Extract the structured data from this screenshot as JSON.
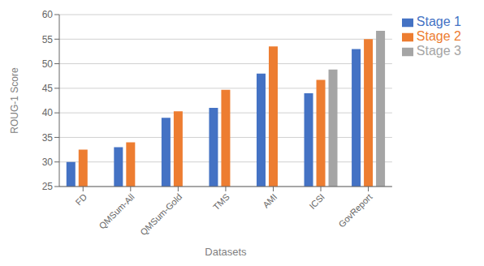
{
  "chart_data": {
    "type": "bar",
    "categories": [
      "FD",
      "QMSum-All",
      "QMSum-Gold",
      "TMS",
      "AMI",
      "ICSI",
      "GovReport"
    ],
    "series": [
      {
        "name": "Stage 1",
        "color": "#4472c4",
        "values": [
          30.0,
          33.0,
          39.0,
          41.0,
          48.0,
          44.0,
          53.0
        ]
      },
      {
        "name": "Stage 2",
        "color": "#ed7d31",
        "values": [
          32.5,
          34.0,
          40.3,
          44.7,
          53.5,
          46.7,
          55.0
        ]
      },
      {
        "name": "Stage 3",
        "color": "#a5a5a5",
        "values": [
          null,
          null,
          null,
          null,
          null,
          48.8,
          56.7
        ]
      }
    ],
    "xlabel": "Datasets",
    "ylabel": "ROUG-1 Score",
    "ylim": [
      25,
      60
    ],
    "yticks": [
      25,
      30,
      35,
      40,
      45,
      50,
      55,
      60
    ],
    "grid": true,
    "legend": "right"
  }
}
